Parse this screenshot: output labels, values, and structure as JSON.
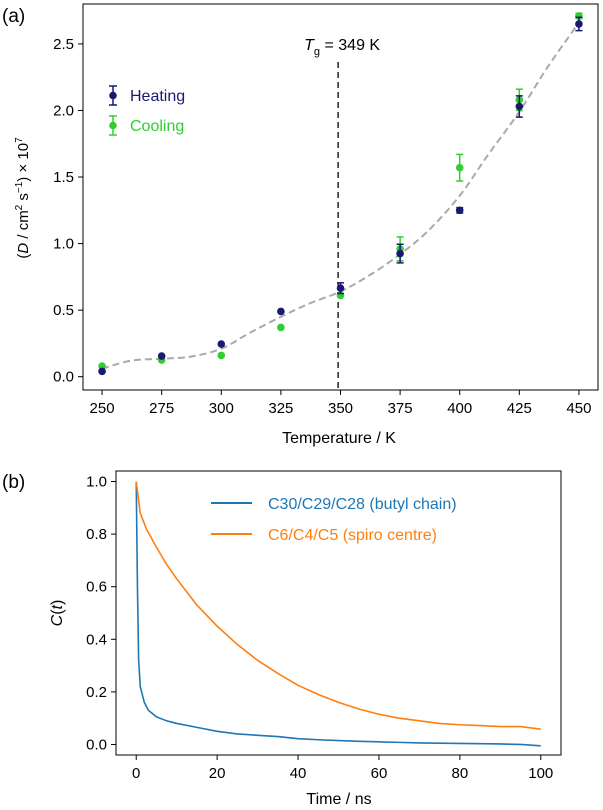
{
  "chart_data": [
    {
      "panel_label": "(a)",
      "type": "scatter",
      "xlabel": "Temperature / K",
      "ylabel_parts": [
        "(",
        "D",
        " / cm",
        "2",
        " s",
        "−1",
        ") × 10",
        "7"
      ],
      "xlim": [
        242,
        458
      ],
      "ylim": [
        -0.1,
        2.8
      ],
      "xticks": [
        250,
        275,
        300,
        325,
        350,
        375,
        400,
        425,
        450
      ],
      "yticks": [
        0.0,
        0.5,
        1.0,
        1.5,
        2.0,
        2.5
      ],
      "ytick_labels": [
        "0.0",
        "0.5",
        "1.0",
        "1.5",
        "2.0",
        "2.5"
      ],
      "grid": false,
      "legend_position": "upper-left",
      "annotation": {
        "x": 349,
        "label_parts": [
          "T",
          "g",
          " = 349 K"
        ]
      },
      "series": [
        {
          "name": "Heating",
          "color": "#191970",
          "points": [
            {
              "x": 250,
              "y": 0.04,
              "err": 0.0
            },
            {
              "x": 275,
              "y": 0.155,
              "err": 0.0
            },
            {
              "x": 300,
              "y": 0.245,
              "err": 0.0
            },
            {
              "x": 325,
              "y": 0.49,
              "err": 0.0
            },
            {
              "x": 350,
              "y": 0.665,
              "err": 0.04
            },
            {
              "x": 375,
              "y": 0.925,
              "err": 0.07
            },
            {
              "x": 400,
              "y": 1.25,
              "err": 0.02
            },
            {
              "x": 425,
              "y": 2.03,
              "err": 0.08
            },
            {
              "x": 450,
              "y": 2.65,
              "err": 0.05
            }
          ]
        },
        {
          "name": "Cooling",
          "color": "#32cd32",
          "points": [
            {
              "x": 250,
              "y": 0.08,
              "err": 0.0
            },
            {
              "x": 275,
              "y": 0.125,
              "err": 0.0
            },
            {
              "x": 300,
              "y": 0.16,
              "err": 0.0
            },
            {
              "x": 325,
              "y": 0.37,
              "err": 0.0
            },
            {
              "x": 350,
              "y": 0.61,
              "err": 0.0
            },
            {
              "x": 375,
              "y": 0.96,
              "err": 0.09
            },
            {
              "x": 400,
              "y": 1.57,
              "err": 0.1
            },
            {
              "x": 425,
              "y": 2.08,
              "err": 0.08
            },
            {
              "x": 450,
              "y": 2.71,
              "err": 0.02
            }
          ]
        }
      ],
      "fit_curve": {
        "color": "#aaaaaa",
        "x": [
          250,
          262,
          275,
          287,
          300,
          312,
          325,
          337,
          350,
          362,
          375,
          387,
          400,
          412,
          425,
          437,
          450
        ],
        "y": [
          0.06,
          0.12,
          0.135,
          0.15,
          0.21,
          0.33,
          0.45,
          0.55,
          0.64,
          0.76,
          0.92,
          1.1,
          1.36,
          1.67,
          1.99,
          2.33,
          2.66
        ]
      }
    },
    {
      "panel_label": "(b)",
      "type": "line",
      "xlabel": "Time / ns",
      "ylabel_parts": [
        "C",
        "(",
        "t",
        ")"
      ],
      "xlim": [
        -5,
        105
      ],
      "ylim": [
        -0.04,
        1.04
      ],
      "xticks": [
        0,
        20,
        40,
        60,
        80,
        100
      ],
      "yticks": [
        0.0,
        0.2,
        0.4,
        0.6,
        0.8,
        1.0
      ],
      "ytick_labels": [
        "0.0",
        "0.2",
        "0.4",
        "0.6",
        "0.8",
        "1.0"
      ],
      "grid": false,
      "legend_position": "upper-right",
      "series": [
        {
          "name": "C30/C29/C28 (butyl chain)",
          "color": "#1f77b4",
          "x": [
            0,
            0.3,
            0.6,
            1,
            2,
            3,
            5,
            7.5,
            10,
            15,
            20,
            25,
            30,
            35,
            40,
            45,
            50,
            55,
            60,
            65,
            70,
            75,
            80,
            85,
            90,
            95,
            100
          ],
          "y": [
            1.0,
            0.6,
            0.32,
            0.22,
            0.16,
            0.13,
            0.105,
            0.09,
            0.08,
            0.065,
            0.05,
            0.04,
            0.035,
            0.03,
            0.022,
            0.018,
            0.015,
            0.012,
            0.01,
            0.008,
            0.006,
            0.005,
            0.004,
            0.003,
            0.002,
            0.0,
            -0.005
          ]
        },
        {
          "name": "C6/C4/C5 (spiro centre)",
          "color": "#ff7f0e",
          "x": [
            0,
            1,
            2.5,
            5,
            7.5,
            10,
            15,
            20,
            25,
            30,
            35,
            40,
            45,
            50,
            55,
            60,
            65,
            70,
            75,
            80,
            85,
            90,
            95,
            100
          ],
          "y": [
            1.0,
            0.88,
            0.82,
            0.75,
            0.685,
            0.63,
            0.53,
            0.45,
            0.38,
            0.32,
            0.27,
            0.225,
            0.19,
            0.16,
            0.135,
            0.115,
            0.1,
            0.09,
            0.08,
            0.075,
            0.072,
            0.068,
            0.068,
            0.058
          ]
        }
      ]
    }
  ]
}
